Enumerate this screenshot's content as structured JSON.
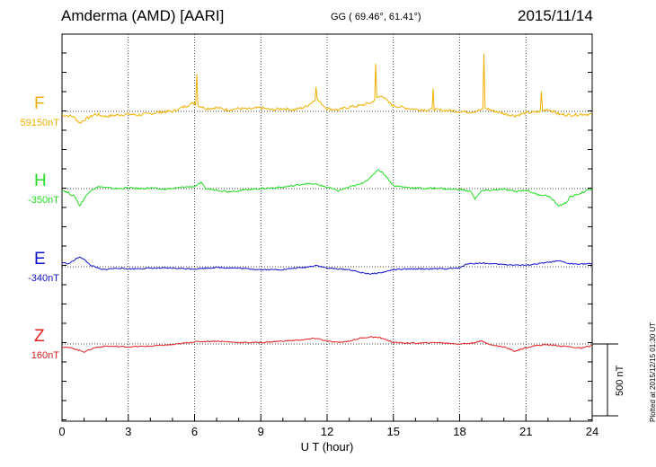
{
  "header": {
    "title": "Amderma (AMD)  [AARI]",
    "coords": "GG ( 69.46°,  61.41°)",
    "date": "2015/11/14",
    "plotted": "Plotted at 2015/12/15 01:30 UT"
  },
  "scale": {
    "label": "500 nT",
    "value_nT": 500
  },
  "chart_data": {
    "type": "line",
    "title": "Amderma (AMD)  [AARI]",
    "xlabel": "U T (hour)",
    "ylabel": "",
    "xlim": [
      0,
      24
    ],
    "x_ticks": [
      "0",
      "3",
      "6",
      "9",
      "12",
      "15",
      "18",
      "21",
      "24"
    ],
    "grid": true,
    "y_units": "nT offset from baseline",
    "series": [
      {
        "name": "F",
        "baseline": "59150nT",
        "color": "#f0b000",
        "points": [
          [
            0,
            -25
          ],
          [
            0.5,
            -35
          ],
          [
            0.8,
            -80
          ],
          [
            1.0,
            -60
          ],
          [
            1.5,
            -20
          ],
          [
            2,
            -35
          ],
          [
            2.5,
            -25
          ],
          [
            3,
            -20
          ],
          [
            3.5,
            -25
          ],
          [
            4,
            -15
          ],
          [
            4.5,
            -5
          ],
          [
            5,
            0
          ],
          [
            5.5,
            30
          ],
          [
            5.8,
            50
          ],
          [
            6,
            60
          ],
          [
            6.2,
            40
          ],
          [
            6.5,
            20
          ],
          [
            7,
            25
          ],
          [
            7.5,
            10
          ],
          [
            8,
            20
          ],
          [
            8.5,
            15
          ],
          [
            9,
            25
          ],
          [
            9.5,
            10
          ],
          [
            10,
            20
          ],
          [
            10.5,
            10
          ],
          [
            11,
            30
          ],
          [
            11.3,
            60
          ],
          [
            11.5,
            90
          ],
          [
            11.7,
            60
          ],
          [
            12,
            20
          ],
          [
            12.5,
            10
          ],
          [
            13,
            30
          ],
          [
            13.5,
            40
          ],
          [
            14,
            60
          ],
          [
            14.2,
            90
          ],
          [
            14.5,
            110
          ],
          [
            14.8,
            60
          ],
          [
            15,
            40
          ],
          [
            15.5,
            25
          ],
          [
            16,
            15
          ],
          [
            16.5,
            10
          ],
          [
            17,
            10
          ],
          [
            17.5,
            5
          ],
          [
            18,
            0
          ],
          [
            18.5,
            -5
          ],
          [
            19,
            10
          ],
          [
            19.2,
            20
          ],
          [
            19.5,
            5
          ],
          [
            20,
            -15
          ],
          [
            20.5,
            -30
          ],
          [
            21,
            -10
          ],
          [
            21.5,
            -5
          ],
          [
            22,
            15
          ],
          [
            22.5,
            -20
          ],
          [
            23,
            -25
          ],
          [
            23.5,
            -20
          ],
          [
            24,
            -20
          ]
        ],
        "spikes": [
          [
            6.1,
            260
          ],
          [
            11.5,
            170
          ],
          [
            14.2,
            330
          ],
          [
            16.8,
            160
          ],
          [
            19.1,
            400
          ],
          [
            21.7,
            140
          ]
        ]
      },
      {
        "name": "H",
        "baseline": "-350nT",
        "color": "#22dd22",
        "points": [
          [
            0,
            -10
          ],
          [
            0.3,
            -30
          ],
          [
            0.6,
            -60
          ],
          [
            0.8,
            -120
          ],
          [
            1.0,
            -70
          ],
          [
            1.3,
            -10
          ],
          [
            1.7,
            15
          ],
          [
            2,
            5
          ],
          [
            2.5,
            0
          ],
          [
            3,
            5
          ],
          [
            3.5,
            0
          ],
          [
            4,
            5
          ],
          [
            4.5,
            -5
          ],
          [
            5,
            0
          ],
          [
            5.5,
            10
          ],
          [
            6,
            15
          ],
          [
            6.3,
            40
          ],
          [
            6.5,
            0
          ],
          [
            7,
            -10
          ],
          [
            7.5,
            -20
          ],
          [
            8,
            -15
          ],
          [
            8.5,
            -5
          ],
          [
            9,
            0
          ],
          [
            9.5,
            5
          ],
          [
            10,
            10
          ],
          [
            10.5,
            20
          ],
          [
            11,
            35
          ],
          [
            11.5,
            30
          ],
          [
            12,
            10
          ],
          [
            12.5,
            -15
          ],
          [
            13,
            10
          ],
          [
            13.5,
            30
          ],
          [
            13.8,
            60
          ],
          [
            14,
            80
          ],
          [
            14.3,
            135
          ],
          [
            14.6,
            100
          ],
          [
            15,
            20
          ],
          [
            15.5,
            10
          ],
          [
            16,
            5
          ],
          [
            16.5,
            0
          ],
          [
            17,
            5
          ],
          [
            17.5,
            -5
          ],
          [
            18,
            -5
          ],
          [
            18.5,
            -20
          ],
          [
            18.7,
            -70
          ],
          [
            19,
            -15
          ],
          [
            19.5,
            -10
          ],
          [
            20,
            -5
          ],
          [
            20.5,
            -20
          ],
          [
            21,
            -10
          ],
          [
            21.5,
            -40
          ],
          [
            22,
            -50
          ],
          [
            22.5,
            -120
          ],
          [
            22.8,
            -100
          ],
          [
            23,
            -60
          ],
          [
            23.5,
            -30
          ],
          [
            24,
            0
          ]
        ]
      },
      {
        "name": "E",
        "baseline": "-340nT",
        "color": "#1010d0",
        "points": [
          [
            0,
            30
          ],
          [
            0.3,
            20
          ],
          [
            0.8,
            70
          ],
          [
            1.0,
            50
          ],
          [
            1.3,
            10
          ],
          [
            1.8,
            -20
          ],
          [
            2.5,
            -10
          ],
          [
            3,
            -15
          ],
          [
            4,
            -10
          ],
          [
            5,
            -10
          ],
          [
            6,
            -15
          ],
          [
            7,
            -5
          ],
          [
            8,
            -10
          ],
          [
            9,
            -20
          ],
          [
            10,
            -20
          ],
          [
            10.5,
            -10
          ],
          [
            11,
            -5
          ],
          [
            11.5,
            10
          ],
          [
            12,
            -10
          ],
          [
            13,
            -20
          ],
          [
            13.5,
            -40
          ],
          [
            14,
            -50
          ],
          [
            14.5,
            -40
          ],
          [
            15,
            -20
          ],
          [
            16,
            -15
          ],
          [
            17,
            -15
          ],
          [
            18,
            -10
          ],
          [
            18.3,
            20
          ],
          [
            19,
            25
          ],
          [
            20,
            15
          ],
          [
            21,
            10
          ],
          [
            22,
            30
          ],
          [
            22.5,
            40
          ],
          [
            23,
            20
          ],
          [
            24,
            20
          ]
        ]
      },
      {
        "name": "Z",
        "baseline": "160nT",
        "color": "#e02020",
        "points": [
          [
            0,
            -20
          ],
          [
            0.5,
            -30
          ],
          [
            1.0,
            -55
          ],
          [
            1.5,
            -25
          ],
          [
            2,
            -15
          ],
          [
            3,
            -20
          ],
          [
            4,
            -15
          ],
          [
            5,
            -5
          ],
          [
            6,
            15
          ],
          [
            7,
            20
          ],
          [
            8,
            10
          ],
          [
            9,
            10
          ],
          [
            10,
            20
          ],
          [
            11,
            30
          ],
          [
            11.5,
            40
          ],
          [
            12,
            20
          ],
          [
            12.5,
            10
          ],
          [
            13,
            20
          ],
          [
            13.5,
            40
          ],
          [
            14,
            50
          ],
          [
            14.5,
            40
          ],
          [
            15,
            10
          ],
          [
            16,
            5
          ],
          [
            17,
            10
          ],
          [
            18,
            0
          ],
          [
            18.5,
            5
          ],
          [
            19,
            20
          ],
          [
            19.5,
            -10
          ],
          [
            20,
            -20
          ],
          [
            20.5,
            -50
          ],
          [
            21,
            -25
          ],
          [
            21.5,
            -10
          ],
          [
            22,
            -5
          ],
          [
            23,
            -20
          ],
          [
            23.5,
            -30
          ],
          [
            24,
            -10
          ]
        ]
      }
    ]
  }
}
